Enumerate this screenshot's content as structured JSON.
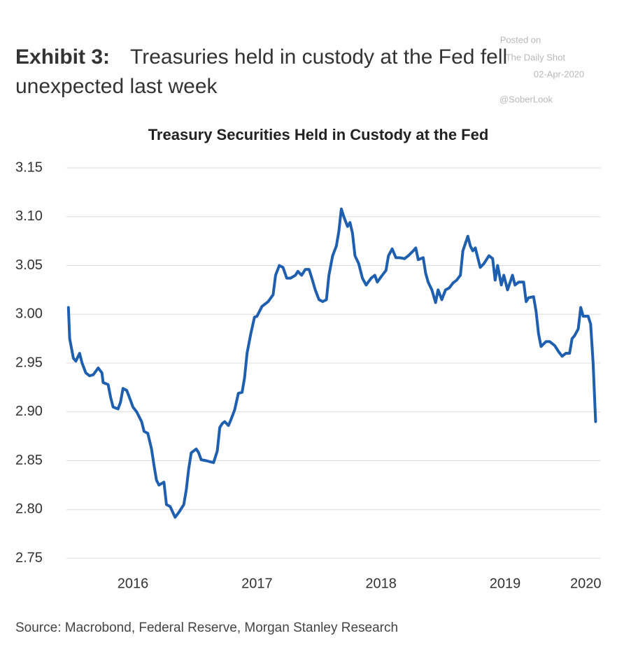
{
  "watermark": {
    "lines": [
      "Posted on",
      "The Daily Shot",
      "02-Apr-2020",
      "@SoberLook"
    ]
  },
  "exhibit": "Exhibit 3:",
  "headline": [
    "Treasuries held in custody at the Fed fell",
    "unexpected last week"
  ],
  "source": "Source: Macrobond, Federal Reserve, Morgan Stanley Research",
  "chart_data": {
    "type": "line",
    "title": "Treasury Securities Held in Custody at the Fed",
    "x": [
      2015.98,
      2015.99,
      2016.02,
      2016.04,
      2016.07,
      2016.09,
      2016.12,
      2016.15,
      2016.18,
      2016.22,
      2016.25,
      2016.26,
      2016.3,
      2016.32,
      2016.34,
      2016.38,
      2016.4,
      2016.42,
      2016.45,
      2016.48,
      2016.5,
      2016.53,
      2016.57,
      2016.59,
      2016.62,
      2016.65,
      2016.67,
      2016.69,
      2016.71,
      2016.75,
      2016.77,
      2016.8,
      2016.84,
      2016.87,
      2016.91,
      2016.93,
      2016.95,
      2016.97,
      2017.01,
      2017.03,
      2017.05,
      2017.09,
      2017.12,
      2017.15,
      2017.18,
      2017.2,
      2017.22,
      2017.24,
      2017.27,
      2017.29,
      2017.32,
      2017.35,
      2017.38,
      2017.4,
      2017.42,
      2017.45,
      2017.48,
      2017.5,
      2017.54,
      2017.56,
      2017.59,
      2017.63,
      2017.65,
      2017.68,
      2017.71,
      2017.74,
      2017.77,
      2017.81,
      2017.83,
      2017.86,
      2017.89,
      2017.92,
      2017.94,
      2017.97,
      2018.0,
      2018.03,
      2018.06,
      2018.08,
      2018.11,
      2018.14,
      2018.16,
      2018.18,
      2018.2,
      2018.23,
      2018.25,
      2018.27,
      2018.29,
      2018.32,
      2018.35,
      2018.38,
      2018.42,
      2018.45,
      2018.47,
      2018.51,
      2018.54,
      2018.56,
      2018.59,
      2018.62,
      2018.65,
      2018.69,
      2018.72,
      2018.76,
      2018.78,
      2018.8,
      2018.84,
      2018.86,
      2018.88,
      2018.91,
      2018.94,
      2018.96,
      2018.99,
      2019.02,
      2019.05,
      2019.08,
      2019.11,
      2019.14,
      2019.16,
      2019.2,
      2019.22,
      2019.24,
      2019.26,
      2019.3,
      2019.33,
      2019.37,
      2019.4,
      2019.42,
      2019.44,
      2019.47,
      2019.49,
      2019.52,
      2019.56,
      2019.58,
      2019.61,
      2019.65,
      2019.67,
      2019.69,
      2019.73,
      2019.75,
      2019.77,
      2019.79,
      2019.83,
      2019.86,
      2019.9,
      2019.93,
      2019.96,
      2019.99,
      2020.02,
      2020.04,
      2020.06,
      2020.09,
      2020.11,
      2020.13,
      2020.17,
      2020.19,
      2020.21,
      2020.23
    ],
    "series": [
      {
        "name": "Treasury Securities Held in Custody",
        "color": "#1f5fb0",
        "values": [
          3.007,
          2.975,
          2.955,
          2.952,
          2.96,
          2.95,
          2.94,
          2.937,
          2.938,
          2.945,
          2.94,
          2.93,
          2.928,
          2.915,
          2.905,
          2.903,
          2.91,
          2.924,
          2.922,
          2.912,
          2.905,
          2.9,
          2.89,
          2.88,
          2.878,
          2.862,
          2.845,
          2.83,
          2.825,
          2.828,
          2.805,
          2.803,
          2.792,
          2.797,
          2.805,
          2.82,
          2.842,
          2.858,
          2.862,
          2.858,
          2.851,
          2.85,
          2.849,
          2.848,
          2.86,
          2.884,
          2.888,
          2.89,
          2.886,
          2.892,
          2.902,
          2.919,
          2.92,
          2.935,
          2.96,
          2.98,
          2.997,
          2.998,
          3.008,
          3.01,
          3.013,
          3.02,
          3.04,
          3.05,
          3.048,
          3.037,
          3.037,
          3.04,
          3.044,
          3.04,
          3.046,
          3.046,
          3.038,
          3.025,
          3.015,
          3.013,
          3.015,
          3.04,
          3.06,
          3.07,
          3.085,
          3.108,
          3.1,
          3.09,
          3.094,
          3.083,
          3.06,
          3.052,
          3.037,
          3.03,
          3.037,
          3.04,
          3.033,
          3.04,
          3.045,
          3.06,
          3.067,
          3.058,
          3.058,
          3.057,
          3.06,
          3.065,
          3.068,
          3.056,
          3.058,
          3.042,
          3.033,
          3.025,
          3.012,
          3.025,
          3.015,
          3.025,
          3.027,
          3.032,
          3.035,
          3.04,
          3.065,
          3.08,
          3.07,
          3.065,
          3.068,
          3.048,
          3.052,
          3.06,
          3.057,
          3.035,
          3.05,
          3.03,
          3.04,
          3.025,
          3.04,
          3.03,
          3.033,
          3.033,
          3.013,
          3.017,
          3.018,
          3.003,
          2.98,
          2.967,
          2.972,
          2.972,
          2.968,
          2.962,
          2.957,
          2.96,
          2.96,
          2.975,
          2.978,
          2.985,
          3.007,
          2.998,
          2.998,
          2.99,
          2.95,
          2.89
        ]
      }
    ],
    "xlim": [
      2015.95,
      2020.27
    ],
    "xticks": [
      {
        "value": 2016.5,
        "label": "2016"
      },
      {
        "value": 2017.5,
        "label": "2017"
      },
      {
        "value": 2018.5,
        "label": "2018"
      },
      {
        "value": 2019.5,
        "label": "2019"
      },
      {
        "value": 2020.15,
        "label": "2020"
      }
    ],
    "ylim": [
      2.75,
      3.15
    ],
    "yticks": [
      {
        "value": 2.75,
        "label": "2.75"
      },
      {
        "value": 2.8,
        "label": "2.80"
      },
      {
        "value": 2.85,
        "label": "2.85"
      },
      {
        "value": 2.9,
        "label": "2.90"
      },
      {
        "value": 2.95,
        "label": "2.95"
      },
      {
        "value": 3.0,
        "label": "3.00"
      },
      {
        "value": 3.05,
        "label": "3.05"
      },
      {
        "value": 3.1,
        "label": "3.10"
      },
      {
        "value": 3.15,
        "label": "3.15"
      }
    ],
    "grid": true
  }
}
